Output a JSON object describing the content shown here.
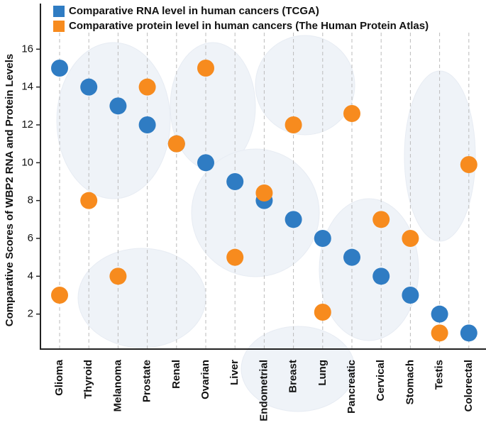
{
  "chart_data": {
    "type": "scatter",
    "y_label": "Comparative Scores of  WBP2 RNA and Protein Levels",
    "categories": [
      "Glioma",
      "Thyroid",
      "Melanoma",
      "Prostate",
      "Renal",
      "Ovarian",
      "Liver",
      "Endometrial",
      "Breast",
      "Lung",
      "Pancreatic",
      "Cervical",
      "Stomach",
      "Testis",
      "Colorectal"
    ],
    "series": [
      {
        "name": "Comparative RNA level in human cancers (TCGA)",
        "color": "#2f7cc3",
        "values": [
          15,
          14,
          13,
          12,
          11,
          10,
          9,
          8,
          7,
          6,
          5,
          4,
          3,
          2,
          1
        ]
      },
      {
        "name": "Comparative protein level in human cancers (The Human Protein Atlas)",
        "color": "#f78b1e",
        "values": [
          3,
          8,
          4,
          14,
          11,
          15,
          5,
          8.4,
          12,
          2.1,
          12.6,
          7,
          6,
          1,
          9.9
        ]
      }
    ],
    "ylim": [
      0,
      18
    ],
    "yticks": [
      2,
      4,
      6,
      8,
      10,
      12,
      14,
      16
    ],
    "grid": true
  }
}
